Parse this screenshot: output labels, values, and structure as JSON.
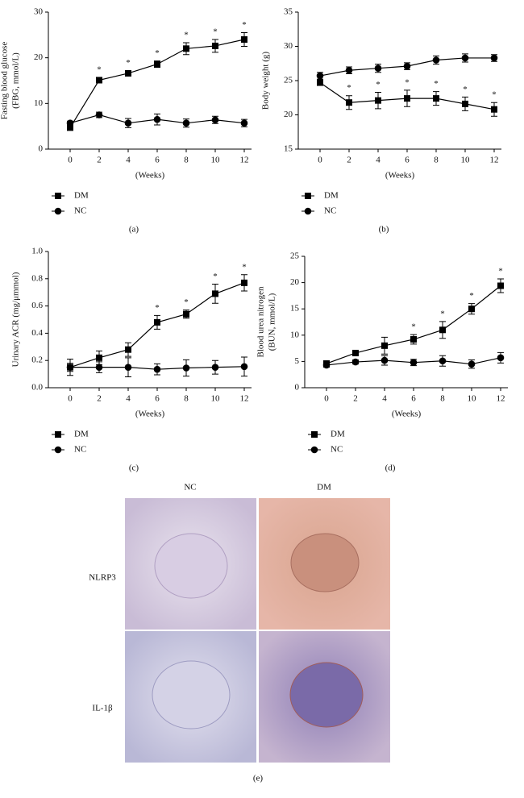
{
  "chart_data": [
    {
      "type": "line",
      "panel": "(a)",
      "ylabel": [
        "Fasting blood glucose",
        "(FBG, mmol/L)"
      ],
      "xlabel": "(Weeks)",
      "x": [
        0,
        2,
        4,
        6,
        8,
        10,
        12
      ],
      "xlim": [
        -1.5,
        12.5
      ],
      "xticks": [
        0,
        2,
        4,
        6,
        8,
        10,
        12
      ],
      "ylim": [
        0,
        30
      ],
      "yticks": [
        0,
        10,
        20,
        30
      ],
      "series": [
        {
          "name": "DM",
          "color": "#000000",
          "marker": "square",
          "values": [
            4.7,
            15.1,
            16.6,
            18.6,
            22,
            22.6,
            24
          ],
          "errors": [
            0.4,
            0.6,
            0.6,
            0.7,
            1.3,
            1.4,
            1.5
          ],
          "markers": [
            null,
            "*",
            "*",
            "*",
            "*",
            "*",
            "*"
          ]
        },
        {
          "name": "NC",
          "color": "#000000",
          "marker": "circle",
          "values": [
            5.7,
            7.5,
            5.7,
            6.5,
            5.7,
            6.4,
            5.7
          ],
          "errors": [
            0.4,
            0.6,
            1.0,
            1.2,
            0.9,
            0.8,
            0.8
          ]
        }
      ]
    },
    {
      "type": "line",
      "panel": "(b)",
      "ylabel": [
        "Body weight (g)"
      ],
      "xlabel": "(Weeks)",
      "x": [
        0,
        2,
        4,
        6,
        8,
        10,
        12
      ],
      "xlim": [
        -1.5,
        12.5
      ],
      "xticks": [
        0,
        2,
        4,
        6,
        8,
        10,
        12
      ],
      "ylim": [
        15,
        35
      ],
      "yticks": [
        15,
        20,
        25,
        30,
        35
      ],
      "series": [
        {
          "name": "DM",
          "color": "#000000",
          "marker": "square",
          "values": [
            24.7,
            21.8,
            22.1,
            22.4,
            22.4,
            21.6,
            20.8
          ],
          "errors": [
            0.4,
            1.0,
            1.2,
            1.2,
            1.0,
            1.0,
            1.0
          ],
          "markers": [
            null,
            "*",
            "*",
            "*",
            "*",
            "*",
            "*"
          ]
        },
        {
          "name": "NC",
          "color": "#000000",
          "marker": "circle",
          "values": [
            25.7,
            26.5,
            26.8,
            27.1,
            28,
            28.3,
            28.3
          ],
          "errors": [
            0.5,
            0.5,
            0.6,
            0.5,
            0.6,
            0.6,
            0.5
          ]
        }
      ]
    },
    {
      "type": "line",
      "panel": "(c)",
      "ylabel": [
        "Urinary ACR (mg/μmmol)"
      ],
      "xlabel": "(Weeks)",
      "x": [
        0,
        2,
        4,
        6,
        8,
        10,
        12
      ],
      "xlim": [
        -1.5,
        12.5
      ],
      "xticks": [
        0,
        2,
        4,
        6,
        8,
        10,
        12
      ],
      "ylim": [
        0,
        1.0
      ],
      "yticks": [
        {
          "value": 0,
          "label": "0.0"
        },
        0.2,
        0.4,
        0.6,
        0.8,
        {
          "value": 1.0,
          "label": "1.0"
        }
      ],
      "series": [
        {
          "name": "DM",
          "color": "#000000",
          "marker": "square",
          "values": [
            0.15,
            0.22,
            0.28,
            0.48,
            0.54,
            0.69,
            0.77
          ],
          "errors": [
            0.03,
            0.05,
            0.05,
            0.05,
            0.03,
            0.07,
            0.06
          ],
          "markers": [
            null,
            null,
            null,
            "*",
            "*",
            "*",
            "*"
          ]
        },
        {
          "name": "NC",
          "color": "#000000",
          "marker": "circle",
          "values": [
            0.15,
            0.15,
            0.15,
            0.135,
            0.145,
            0.15,
            0.155
          ],
          "errors": [
            0.06,
            0.04,
            0.07,
            0.04,
            0.06,
            0.05,
            0.07
          ]
        }
      ]
    },
    {
      "type": "line",
      "panel": "(d)",
      "ylabel": [
        "Blood urea nitrogen",
        "(BUN, mmol/L)"
      ],
      "xlabel": "(Weeks)",
      "x": [
        0,
        2,
        4,
        6,
        8,
        10,
        12
      ],
      "xlim": [
        -1.5,
        12.5
      ],
      "xticks": [
        0,
        2,
        4,
        6,
        8,
        10,
        12
      ],
      "ylim": [
        0,
        25
      ],
      "yticks": [
        0,
        5,
        10,
        15,
        20,
        25
      ],
      "series": [
        {
          "name": "DM",
          "color": "#000000",
          "marker": "square",
          "values": [
            4.6,
            6.6,
            8.0,
            9.2,
            11.0,
            15.0,
            19.4
          ],
          "errors": [
            0.5,
            0.4,
            1.6,
            0.9,
            1.6,
            1.0,
            1.3
          ],
          "markers": [
            null,
            null,
            null,
            "*",
            "*",
            "*",
            "*"
          ]
        },
        {
          "name": "NC",
          "color": "#000000",
          "marker": "circle",
          "values": [
            4.3,
            4.9,
            5.2,
            4.8,
            5.1,
            4.5,
            5.7
          ],
          "errors": [
            0.4,
            0.4,
            0.9,
            0.6,
            1.0,
            0.8,
            1.0
          ]
        }
      ]
    }
  ],
  "panel_e": {
    "columns": [
      "NC",
      "DM"
    ],
    "rows": [
      "NLRP3",
      "IL-1β"
    ],
    "label": "(e)"
  }
}
